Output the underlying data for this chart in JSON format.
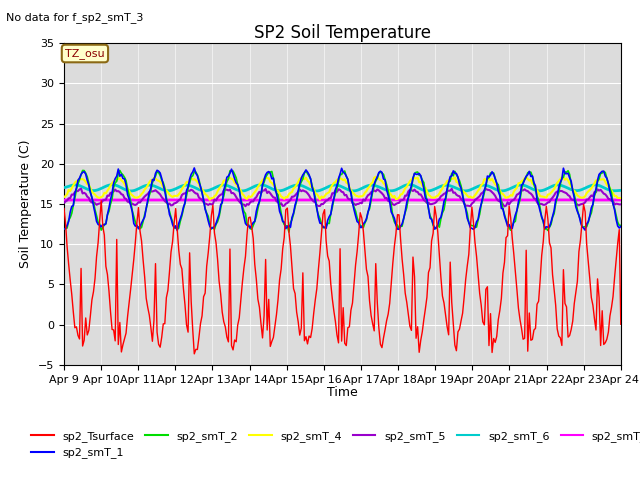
{
  "title": "SP2 Soil Temperature",
  "subtitle": "No data for f_sp2_smT_3",
  "ylabel": "Soil Temperature (C)",
  "xlabel": "Time",
  "ylim": [
    -5,
    35
  ],
  "tz_label": "TZ_osu",
  "x_tick_labels": [
    "Apr 9",
    "Apr 10",
    "Apr 11",
    "Apr 12",
    "Apr 13",
    "Apr 14",
    "Apr 15",
    "Apr 16",
    "Apr 17",
    "Apr 18",
    "Apr 19",
    "Apr 20",
    "Apr 21",
    "Apr 22",
    "Apr 23",
    "Apr 24"
  ],
  "plot_bg_color": "#dcdcdc",
  "series": {
    "sp2_Tsurface": {
      "color": "#ff0000",
      "lw": 1.0
    },
    "sp2_smT_1": {
      "color": "#0000ff",
      "lw": 1.2
    },
    "sp2_smT_2": {
      "color": "#00dd00",
      "lw": 1.2
    },
    "sp2_smT_4": {
      "color": "#ffff00",
      "lw": 1.5
    },
    "sp2_smT_5": {
      "color": "#9900cc",
      "lw": 1.5
    },
    "sp2_smT_6": {
      "color": "#00cccc",
      "lw": 2.0
    },
    "sp2_smT_7": {
      "color": "#ff00ff",
      "lw": 2.0
    }
  }
}
